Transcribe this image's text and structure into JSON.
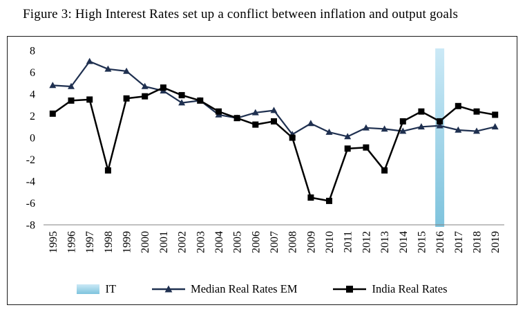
{
  "chart_data": {
    "type": "line",
    "title": "Figure 3: High Interest Rates set up a conflict between inflation and output goals",
    "xlabel": "",
    "ylabel": "",
    "ylim": [
      -8,
      8
    ],
    "ytick_step": 2,
    "grid": false,
    "legend_position": "bottom",
    "axis_color": "#808080",
    "categories": [
      "1995",
      "1996",
      "1997",
      "1998",
      "1999",
      "2000",
      "2001",
      "2002",
      "2003",
      "2004",
      "2005",
      "2006",
      "2007",
      "2008",
      "2009",
      "2010",
      "2011",
      "2012",
      "2013",
      "2014",
      "2015",
      "2016",
      "2017",
      "2018",
      "2019"
    ],
    "series": [
      {
        "name": "Median Real Rates EM",
        "color": "#1f3050",
        "marker": "triangle",
        "values": [
          4.8,
          4.7,
          7.0,
          6.3,
          6.1,
          4.7,
          4.3,
          3.2,
          3.4,
          2.1,
          1.8,
          2.3,
          2.5,
          0.3,
          1.3,
          0.5,
          0.1,
          0.9,
          0.8,
          0.6,
          1.0,
          1.1,
          0.7,
          0.6,
          1.0
        ]
      },
      {
        "name": "India Real Rates",
        "color": "#000000",
        "marker": "square",
        "values": [
          2.2,
          3.4,
          3.5,
          -3.0,
          3.6,
          3.8,
          4.6,
          3.9,
          3.4,
          2.4,
          1.8,
          1.2,
          1.5,
          0.0,
          -5.5,
          -5.8,
          -1.0,
          -0.9,
          -3.0,
          1.5,
          2.4,
          1.5,
          2.9,
          2.4,
          2.1
        ]
      }
    ],
    "band": {
      "label": "IT",
      "category": "2016",
      "color_top": "#cbe9f6",
      "color_bottom": "#7ec3dd"
    }
  }
}
